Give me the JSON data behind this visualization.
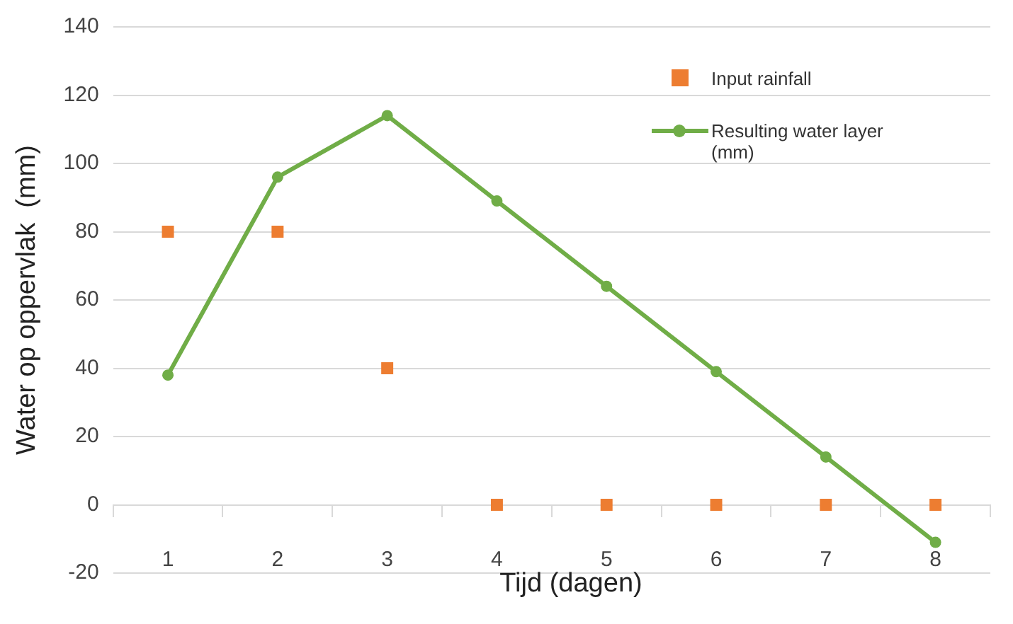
{
  "chart_data": {
    "type": "line",
    "xlabel": "Tijd (dagen)",
    "ylabel": "Water op oppervlak  (mm)",
    "categories": [
      "1",
      "2",
      "3",
      "4",
      "5",
      "6",
      "7",
      "8"
    ],
    "ylim": [
      -20,
      140
    ],
    "yticks": [
      -20,
      0,
      20,
      40,
      60,
      80,
      100,
      120,
      140
    ],
    "grid": "y",
    "legend": "top right",
    "series": [
      {
        "name": "Input rainfall",
        "type": "scatter",
        "marker": "square",
        "color": "#ed7d31",
        "values": [
          80,
          80,
          40,
          0,
          0,
          0,
          0,
          0
        ]
      },
      {
        "name": "Resulting water layer (mm)",
        "marker": "circle",
        "color": "#70ad47",
        "values": [
          38,
          96,
          114,
          89,
          64,
          39,
          14,
          -11
        ]
      }
    ]
  }
}
